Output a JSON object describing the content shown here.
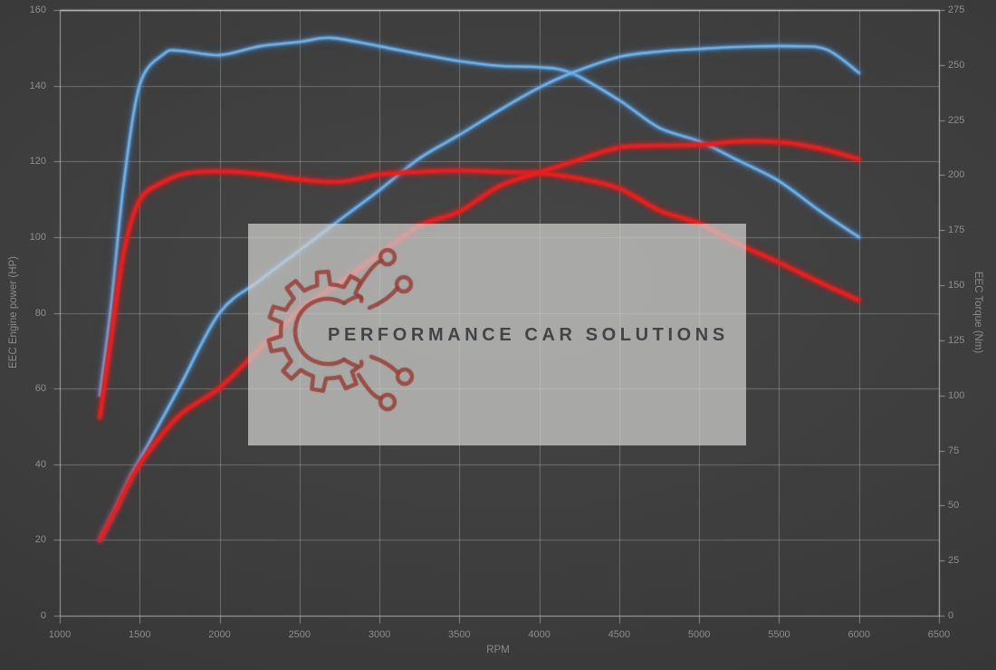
{
  "chart_data": {
    "type": "line",
    "xlabel": "RPM",
    "ylabel_left": "EEC Engine power (HP)",
    "ylabel_right": "EEC Torque (Nm)",
    "x_range": [
      1000,
      6500
    ],
    "y_left_range": [
      0,
      160
    ],
    "y_right_range": [
      0,
      275
    ],
    "x_ticks": [
      1000,
      1500,
      2000,
      2500,
      3000,
      3500,
      4000,
      4500,
      5000,
      5500,
      6000,
      6500
    ],
    "y_left_ticks": [
      0,
      20,
      40,
      60,
      80,
      100,
      120,
      140,
      160
    ],
    "y_right_ticks": [
      0,
      25,
      50,
      75,
      100,
      125,
      150,
      175,
      200,
      225,
      250,
      275
    ],
    "grid": "on",
    "legend": "none",
    "series": [
      {
        "name": "torque-blue",
        "axis": "right",
        "unit": "Nm",
        "color": "#74b2e4",
        "points": [
          [
            1250,
            100
          ],
          [
            1320,
            140
          ],
          [
            1400,
            196
          ],
          [
            1500,
            241
          ],
          [
            1650,
            255
          ],
          [
            1750,
            256.5
          ],
          [
            2000,
            254.5
          ],
          [
            2250,
            258.5
          ],
          [
            2500,
            260.5
          ],
          [
            2700,
            262.3
          ],
          [
            3000,
            258.5
          ],
          [
            3250,
            255
          ],
          [
            3500,
            251.8
          ],
          [
            3750,
            249.6
          ],
          [
            4000,
            249
          ],
          [
            4200,
            246.4
          ],
          [
            4500,
            234
          ],
          [
            4750,
            221.5
          ],
          [
            5000,
            215.4
          ],
          [
            5250,
            206.5
          ],
          [
            5500,
            197.3
          ],
          [
            5750,
            184
          ],
          [
            6000,
            171.8
          ]
        ]
      },
      {
        "name": "power-blue",
        "axis": "left",
        "unit": "HP",
        "color": "#74b2e4",
        "points": [
          [
            1250,
            20
          ],
          [
            1350,
            28.5
          ],
          [
            1450,
            37.5
          ],
          [
            1550,
            45
          ],
          [
            1750,
            60.5
          ],
          [
            2000,
            80
          ],
          [
            2250,
            88.5
          ],
          [
            2500,
            96.5
          ],
          [
            2750,
            104.5
          ],
          [
            3000,
            112.4
          ],
          [
            3250,
            120.8
          ],
          [
            3500,
            127
          ],
          [
            3750,
            133.5
          ],
          [
            4000,
            139.5
          ],
          [
            4200,
            143.3
          ],
          [
            4500,
            147.6
          ],
          [
            4750,
            149
          ],
          [
            5000,
            149.7
          ],
          [
            5300,
            150.3
          ],
          [
            5600,
            150.4
          ],
          [
            5800,
            149.5
          ],
          [
            6000,
            143.4
          ]
        ]
      },
      {
        "name": "torque-red",
        "axis": "right",
        "unit": "Nm",
        "color": "#e42020",
        "points": [
          [
            1250,
            90
          ],
          [
            1320,
            125
          ],
          [
            1400,
            165
          ],
          [
            1500,
            188.7
          ],
          [
            1650,
            197
          ],
          [
            1800,
            201
          ],
          [
            2000,
            201.8
          ],
          [
            2250,
            200.6
          ],
          [
            2500,
            198.1
          ],
          [
            2750,
            197
          ],
          [
            3000,
            200.3
          ],
          [
            3250,
            201.5
          ],
          [
            3500,
            202.1
          ],
          [
            3750,
            201.5
          ],
          [
            4000,
            201
          ],
          [
            4250,
            198.5
          ],
          [
            4500,
            194
          ],
          [
            4750,
            184
          ],
          [
            5000,
            178
          ],
          [
            5250,
            168.5
          ],
          [
            5500,
            160.3
          ],
          [
            5750,
            151.5
          ],
          [
            6000,
            143.2
          ]
        ]
      },
      {
        "name": "power-red",
        "axis": "left",
        "unit": "HP",
        "color": "#e42020",
        "points": [
          [
            1250,
            20
          ],
          [
            1350,
            28
          ],
          [
            1450,
            36.5
          ],
          [
            1550,
            43
          ],
          [
            1750,
            53
          ],
          [
            2000,
            60.2
          ],
          [
            2250,
            70.5
          ],
          [
            2500,
            80.7
          ],
          [
            2750,
            88
          ],
          [
            3000,
            95.5
          ],
          [
            3250,
            103
          ],
          [
            3500,
            106.8
          ],
          [
            3750,
            113.5
          ],
          [
            4000,
            117.1
          ],
          [
            4250,
            120.5
          ],
          [
            4500,
            123.7
          ],
          [
            4750,
            124.2
          ],
          [
            5000,
            124.4
          ],
          [
            5250,
            125.3
          ],
          [
            5500,
            125.1
          ],
          [
            5750,
            123.5
          ],
          [
            6000,
            120.6
          ]
        ]
      }
    ]
  },
  "watermark": {
    "text": "PERFORMANCE CAR SOLUTIONS",
    "logo": "gear-circuit-logo",
    "bg": "#d0d0cd",
    "text_color": "#3a3d40",
    "logo_color": "#96423a"
  },
  "colors": {
    "background": "#3c3c3c",
    "grid": "#d2d2d2",
    "tick_label": "#8d8d8d",
    "axis_title": "#8a8a8a",
    "blue_curve": "#74b2e4",
    "red_curve": "#e42020"
  }
}
